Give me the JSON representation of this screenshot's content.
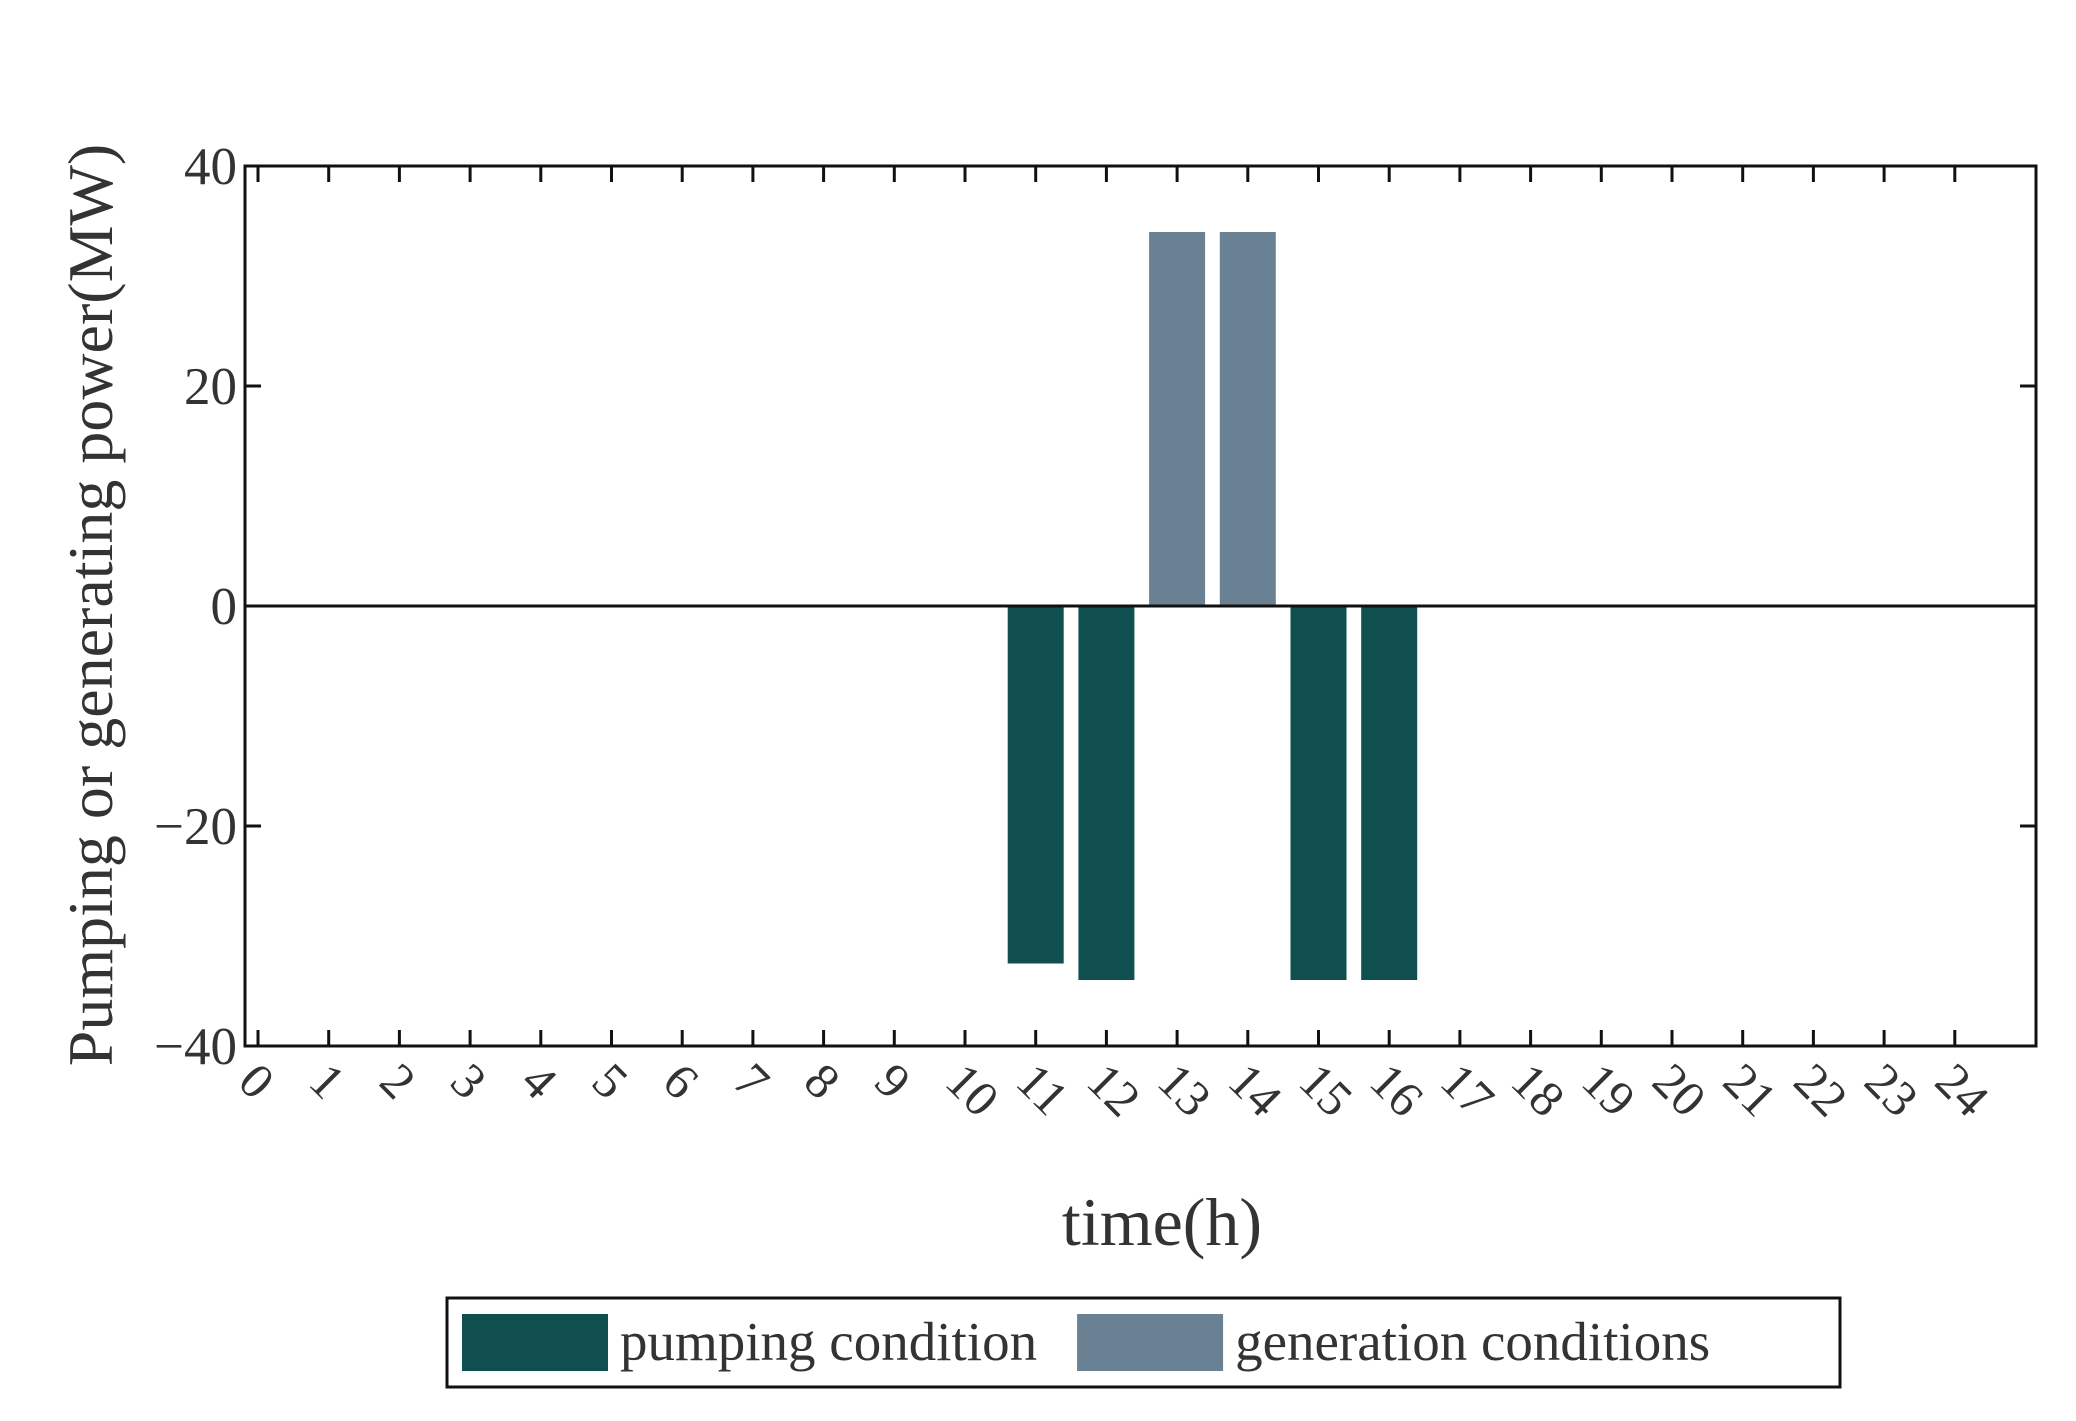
{
  "chart_data": {
    "type": "bar",
    "x_label": "time(h)",
    "y_label": "Pumping or generating power(MW)",
    "categories": [
      "0",
      "1",
      "2",
      "3",
      "4",
      "5",
      "6",
      "7",
      "8",
      "9",
      "10",
      "11",
      "12",
      "13",
      "14",
      "15",
      "16",
      "17",
      "18",
      "19",
      "20",
      "21",
      "22",
      "23",
      "24"
    ],
    "series": [
      {
        "name": "pumping condition",
        "color": "#0f4f4f",
        "values": [
          0,
          0,
          0,
          0,
          0,
          0,
          0,
          0,
          0,
          0,
          0,
          -32.5,
          -34,
          0,
          0,
          -34,
          -34,
          0,
          0,
          0,
          0,
          0,
          0,
          0,
          0
        ]
      },
      {
        "name": "generation conditions",
        "color": "#6a8194",
        "values": [
          0,
          0,
          0,
          0,
          0,
          0,
          0,
          0,
          0,
          0,
          0,
          0,
          0,
          34,
          34,
          0,
          0,
          0,
          0,
          0,
          0,
          0,
          0,
          0,
          0
        ]
      }
    ],
    "ylim": [
      -40,
      40
    ],
    "yticks": [
      {
        "value": -40,
        "label": "−40"
      },
      {
        "value": -20,
        "label": "−20"
      },
      0,
      20,
      40
    ],
    "legend": "bottom"
  }
}
